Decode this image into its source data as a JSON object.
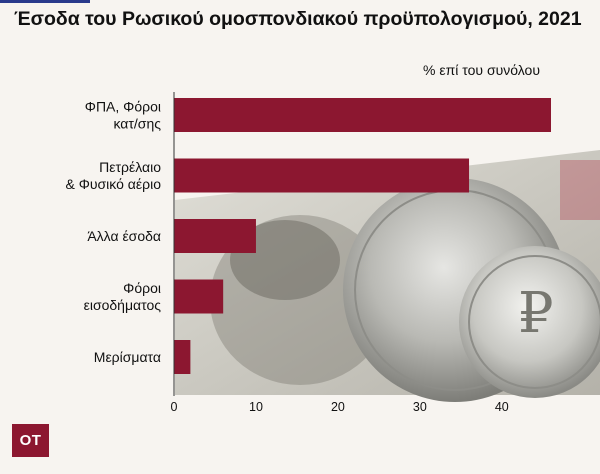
{
  "title": "Έσοδα του Ρωσικού ομοσπονδιακού προϋπολογισμού, 2021",
  "unit_label": "% επί του συνόλου",
  "logo": "ΟΤ",
  "colors": {
    "bar": "#8c1730",
    "logo_bg": "#8c1730",
    "accent": "#2a3a8c"
  },
  "chart_data": {
    "type": "bar",
    "orientation": "horizontal",
    "title": "Έσοδα του Ρωσικού ομοσπονδιακού προϋπολογισμού, 2021",
    "xlabel": "% επί του συνόλου",
    "categories": [
      [
        "ΦΠΑ, Φόροι",
        "κατ/σης"
      ],
      [
        "Πετρέλαιο",
        "& Φυσικό αέριο"
      ],
      [
        "Άλλα έσοδα"
      ],
      [
        "Φόροι",
        "εισοδήματος"
      ],
      [
        "Μερίσματα"
      ]
    ],
    "values": [
      46,
      36,
      10,
      6,
      2
    ],
    "xlim": [
      0,
      46
    ],
    "xticks": [
      0,
      10,
      20,
      30,
      40
    ],
    "grid": false
  }
}
